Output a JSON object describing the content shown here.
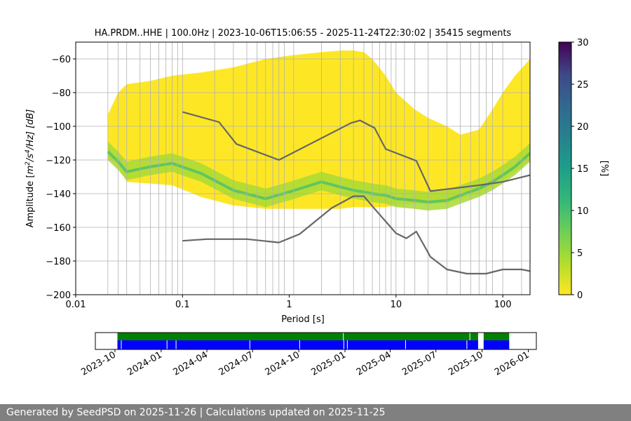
{
  "chart_data": [
    {
      "type": "heatmap",
      "title": "HA.PRDM..HHE | 100.0Hz | 2023-10-06T15:06:55 - 2025-11-24T22:30:02 | 35415 segments",
      "xlabel": "Period [s]",
      "ylabel_parts": [
        "Amplitude [",
        "m",
        "2",
        "/s",
        "4",
        "/Hz] [dB]"
      ],
      "x_scale": "log",
      "xlim": [
        0.01,
        180
      ],
      "ylim": [
        -200,
        -50
      ],
      "x_ticks": [
        0.01,
        0.1,
        1,
        10,
        100
      ],
      "x_tick_labels": [
        "0.01",
        "0.1",
        "1",
        "10",
        "100"
      ],
      "y_ticks": [
        -200,
        -180,
        -160,
        -140,
        -120,
        -100,
        -80,
        -60
      ],
      "y_tick_labels": [
        "−200",
        "−180",
        "−160",
        "−140",
        "−120",
        "−100",
        "−80",
        "−60"
      ],
      "colorbar": {
        "label": "[%]",
        "range": [
          0,
          30
        ],
        "ticks": [
          0,
          5,
          10,
          15,
          20,
          25,
          30
        ],
        "tick_labels": [
          "0",
          "5",
          "10",
          "15",
          "20",
          "25",
          "30"
        ],
        "colormap": "viridis_r"
      },
      "vertical_gridlines_period": [
        0.02,
        0.025,
        0.03,
        0.04,
        0.05,
        0.06,
        0.07,
        0.08,
        0.09,
        0.1,
        0.2,
        0.3,
        0.4,
        0.5,
        0.6,
        0.7,
        0.8,
        0.9,
        1.1,
        2,
        3,
        4,
        5,
        6,
        7,
        8,
        9,
        10,
        12,
        15,
        20,
        30,
        40,
        50,
        60,
        70,
        80,
        100,
        150
      ],
      "horizontal_grid": true,
      "density_band": {
        "description_levels": "psd distribution occupancy percent",
        "period": [
          0.02,
          0.025,
          0.03,
          0.05,
          0.08,
          0.15,
          0.3,
          0.6,
          1,
          2,
          3,
          4,
          5,
          6,
          8,
          10,
          15,
          20,
          30,
          40,
          60,
          80,
          100,
          130,
          180
        ],
        "mode_db": [
          -115,
          -121,
          -127,
          -124,
          -122,
          -128,
          -138,
          -143,
          -139,
          -133,
          -136,
          -138,
          -139,
          -140,
          -141,
          -143,
          -144,
          -145,
          -144,
          -141,
          -137,
          -133,
          -129,
          -124,
          -116
        ],
        "lower_db": [
          -118,
          -124,
          -133,
          -134,
          -135,
          -142,
          -147,
          -149,
          -149,
          -149,
          -149,
          -148,
          -148,
          -148,
          -148,
          -147,
          -146,
          -146,
          -146,
          -143,
          -140,
          -136,
          -132,
          -127,
          -120
        ],
        "upper_db": [
          -93,
          -80,
          -75,
          -73,
          -70,
          -68,
          -65,
          -60,
          -58,
          -56,
          -55,
          -55,
          -56,
          -60,
          -70,
          -80,
          -90,
          -95,
          -100,
          -105,
          -102,
          -90,
          -80,
          -70,
          -60
        ]
      },
      "series": [
        {
          "name": "",
          "color": "#666666",
          "x": [
            0.1,
            0.22,
            0.32,
            0.8,
            3.8,
            4.6,
            6.3,
            8.0,
            15.5,
            21.0,
            60.0,
            100.0,
            180.0
          ],
          "y": [
            -91.5,
            -97.5,
            -110.5,
            -120,
            -98,
            -96.5,
            -101,
            -113.5,
            -120.5,
            -138.5,
            -135,
            -133,
            -129
          ]
        },
        {
          "name": "",
          "color": "#666666",
          "x": [
            0.1,
            0.17,
            0.4,
            0.8,
            1.25,
            2.5,
            4.0,
            5.0,
            6.3,
            10.0,
            12.5,
            15.5,
            21.0,
            30.0,
            46.0,
            70.0,
            100.0,
            150.0,
            180.0
          ],
          "y": [
            -168,
            -167,
            -167,
            -169,
            -164,
            -148.5,
            -141.5,
            -141.5,
            -149,
            -163.5,
            -166.5,
            -162.5,
            -177.5,
            -185,
            -187.5,
            -187.5,
            -185,
            -185,
            -186
          ]
        }
      ]
    },
    {
      "type": "timeline",
      "x_tick_labels": [
        "2023-10",
        "2024-01",
        "2024-04",
        "2024-07",
        "2024-10",
        "2025-01",
        "2025-04",
        "2025-07",
        "2025-10",
        "2026-01"
      ],
      "x_ticks": [
        "2023-10-01",
        "2024-01-01",
        "2024-04-01",
        "2024-07-01",
        "2024-10-01",
        "2025-01-01",
        "2025-04-01",
        "2025-07-01",
        "2025-10-01",
        "2026-01-01"
      ],
      "xlim": [
        "2023-08-23",
        "2026-01-17"
      ],
      "green_color": "#008000",
      "blue_color": "#0000ff",
      "green_segments": [
        [
          "2023-10-06",
          "2025-09-23"
        ],
        [
          "2025-10-04",
          "2025-11-24"
        ]
      ],
      "blue_segments": [
        [
          "2023-10-06",
          "2025-09-23"
        ],
        [
          "2025-10-04",
          "2025-11-24"
        ]
      ],
      "blue_gaps": [
        "2023-10-13",
        "2024-01-12",
        "2024-01-30",
        "2024-06-25",
        "2024-10-02",
        "2024-12-29",
        "2025-01-05",
        "2025-05-01",
        "2025-08-31"
      ],
      "green_gaps": [
        "2024-12-28",
        "2025-09-06"
      ]
    }
  ],
  "footer": {
    "text": "Generated by SeedPSD on 2025-11-26 | Calculations updated on 2025-11-25"
  }
}
